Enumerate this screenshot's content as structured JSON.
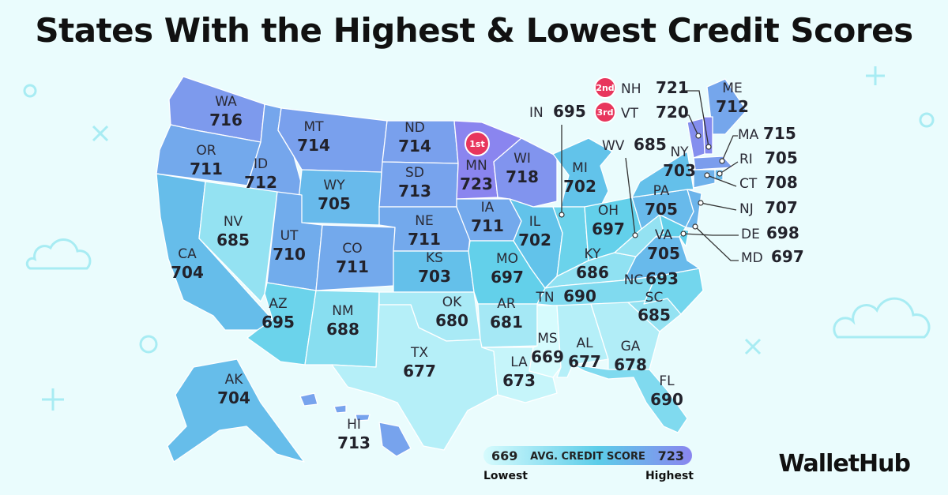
{
  "title": "States With the Highest & Lowest Credit Scores",
  "brand": "WalletHub",
  "legend": {
    "label": "AVG. CREDIT SCORE",
    "min": 669,
    "max": 723,
    "low_label": "Lowest",
    "high_label": "Highest"
  },
  "colors": {
    "lowest": "#d6fbfd",
    "mid": "#5ccde9",
    "highest": "#8a85ef",
    "rank_badge": "#e8365d",
    "background": "#eafcfd"
  },
  "ranks": [
    {
      "rank": "1st",
      "state": "MN"
    },
    {
      "rank": "2nd",
      "state": "NH"
    },
    {
      "rank": "3rd",
      "state": "VT"
    }
  ],
  "states": [
    {
      "abbr": "WA",
      "score": 716
    },
    {
      "abbr": "OR",
      "score": 711
    },
    {
      "abbr": "CA",
      "score": 704
    },
    {
      "abbr": "ID",
      "score": 712
    },
    {
      "abbr": "NV",
      "score": 685
    },
    {
      "abbr": "MT",
      "score": 714
    },
    {
      "abbr": "WY",
      "score": 705
    },
    {
      "abbr": "UT",
      "score": 710
    },
    {
      "abbr": "AZ",
      "score": 695
    },
    {
      "abbr": "CO",
      "score": 711
    },
    {
      "abbr": "NM",
      "score": 688
    },
    {
      "abbr": "ND",
      "score": 714
    },
    {
      "abbr": "SD",
      "score": 713
    },
    {
      "abbr": "NE",
      "score": 711
    },
    {
      "abbr": "KS",
      "score": 703
    },
    {
      "abbr": "OK",
      "score": 680
    },
    {
      "abbr": "TX",
      "score": 677
    },
    {
      "abbr": "MN",
      "score": 723
    },
    {
      "abbr": "IA",
      "score": 711
    },
    {
      "abbr": "MO",
      "score": 697
    },
    {
      "abbr": "AR",
      "score": 681
    },
    {
      "abbr": "LA",
      "score": 673
    },
    {
      "abbr": "WI",
      "score": 718
    },
    {
      "abbr": "IL",
      "score": 702
    },
    {
      "abbr": "MI",
      "score": 702
    },
    {
      "abbr": "IN",
      "score": 695
    },
    {
      "abbr": "OH",
      "score": 697
    },
    {
      "abbr": "KY",
      "score": 686
    },
    {
      "abbr": "TN",
      "score": 690
    },
    {
      "abbr": "MS",
      "score": 669
    },
    {
      "abbr": "AL",
      "score": 677
    },
    {
      "abbr": "GA",
      "score": 678
    },
    {
      "abbr": "FL",
      "score": 690
    },
    {
      "abbr": "SC",
      "score": 685
    },
    {
      "abbr": "NC",
      "score": 693
    },
    {
      "abbr": "VA",
      "score": 705
    },
    {
      "abbr": "WV",
      "score": 685
    },
    {
      "abbr": "PA",
      "score": 705
    },
    {
      "abbr": "NY",
      "score": 703
    },
    {
      "abbr": "ME",
      "score": 712
    },
    {
      "abbr": "NH",
      "score": 721
    },
    {
      "abbr": "VT",
      "score": 720
    },
    {
      "abbr": "MA",
      "score": 715
    },
    {
      "abbr": "RI",
      "score": 705
    },
    {
      "abbr": "CT",
      "score": 708
    },
    {
      "abbr": "NJ",
      "score": 707
    },
    {
      "abbr": "DE",
      "score": 698
    },
    {
      "abbr": "MD",
      "score": 697
    },
    {
      "abbr": "AK",
      "score": 704
    },
    {
      "abbr": "HI",
      "score": 713
    }
  ]
}
